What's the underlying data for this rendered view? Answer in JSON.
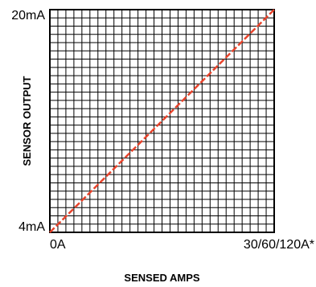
{
  "chart_data": {
    "type": "line",
    "title": "",
    "xlabel": "SENSED AMPS",
    "ylabel": "SENSOR OUTPUT",
    "x_tick_labels": [
      "0A",
      "30/60/120A*"
    ],
    "y_tick_labels": [
      "4mA",
      "20mA"
    ],
    "xlim": [
      0,
      1
    ],
    "ylim": [
      4,
      20
    ],
    "grid": true,
    "legend": "none",
    "series": [
      {
        "x": [
          0,
          1
        ],
        "y": [
          4,
          20
        ],
        "color": "#e8432b",
        "style": "dashed"
      }
    ]
  }
}
